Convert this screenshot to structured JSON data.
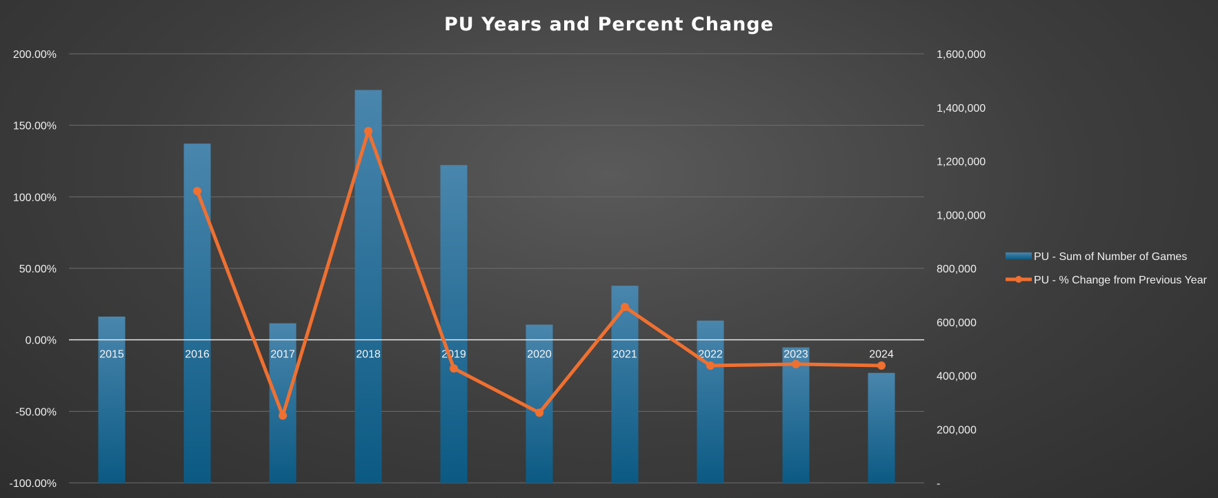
{
  "chart_data": {
    "type": "bar+line",
    "title": "PU Years and Percent Change",
    "categories": [
      "2015",
      "2016",
      "2017",
      "2018",
      "2019",
      "2020",
      "2021",
      "2022",
      "2023",
      "2024"
    ],
    "series": [
      {
        "name": "PU - Sum of Number of Games",
        "type": "bar",
        "axis": "right",
        "color": "#1f6a96",
        "values": [
          620000,
          1265000,
          595000,
          1465000,
          1185000,
          590000,
          735000,
          605000,
          505000,
          410000
        ]
      },
      {
        "name": "PU - % Change from Previous Year",
        "type": "line",
        "axis": "left",
        "color": "#f07030",
        "values": [
          null,
          104,
          -53,
          146,
          -20,
          -51,
          23,
          -18,
          -17,
          -18
        ]
      }
    ],
    "y_left": {
      "min": -100,
      "max": 200,
      "step": 50,
      "tick_labels": [
        "-100.00%",
        "-50.00%",
        "0.00%",
        "50.00%",
        "100.00%",
        "150.00%",
        "200.00%"
      ]
    },
    "y_right": {
      "min": 0,
      "max": 1600000,
      "step": 200000,
      "tick_labels": [
        "-",
        "200,000",
        "400,000",
        "600,000",
        "800,000",
        "1,000,000",
        "1,200,000",
        "1,400,000",
        "1,600,000"
      ]
    },
    "grid": true,
    "legend_position": "right"
  }
}
